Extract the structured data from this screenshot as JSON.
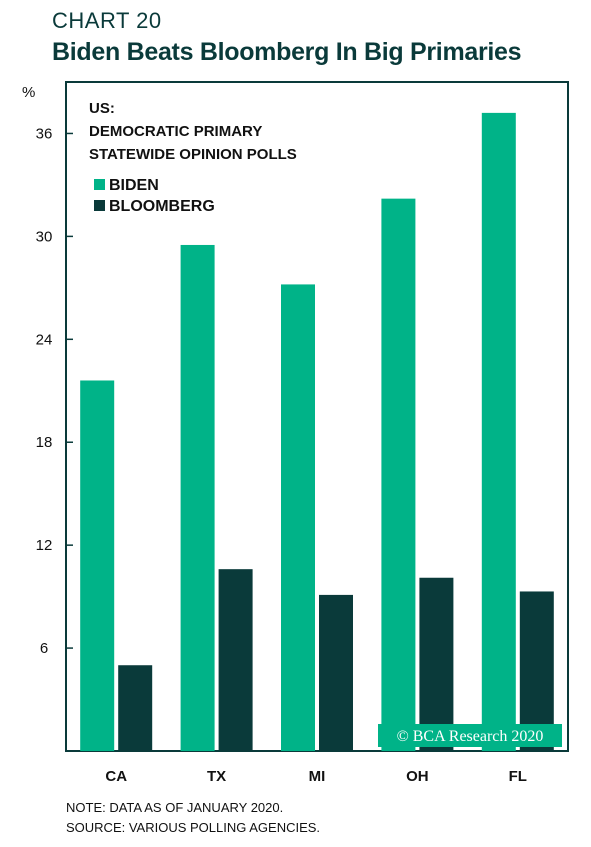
{
  "header": {
    "chart_label": "CHART 20",
    "title": "Biden Beats Bloomberg In Big Primaries"
  },
  "chart_data": {
    "type": "bar",
    "title": "Biden Beats Bloomberg In Big Primaries",
    "ylabel": "%",
    "xlabel": "",
    "ylim": [
      0,
      39
    ],
    "yticks": [
      6,
      12,
      18,
      24,
      30,
      36
    ],
    "categories": [
      "CA",
      "TX",
      "MI",
      "OH",
      "FL"
    ],
    "series": [
      {
        "name": "BIDEN",
        "color": "#00b388",
        "values": [
          21.6,
          29.5,
          27.2,
          32.2,
          37.2
        ]
      },
      {
        "name": "BLOOMBERG",
        "color": "#0a3a3a",
        "values": [
          5.0,
          10.6,
          9.1,
          10.1,
          9.3
        ]
      }
    ],
    "annotation_lines": [
      "US:",
      "DEMOCRATIC PRIMARY",
      "STATEWIDE OPINION POLLS"
    ],
    "legend_position": "top-left",
    "grid": false
  },
  "watermark": {
    "text": "© BCA Research 2020",
    "bg": "#00b388"
  },
  "notes": [
    "NOTE: DATA AS OF JANUARY 2020.",
    "SOURCE: VARIOUS POLLING AGENCIES."
  ]
}
